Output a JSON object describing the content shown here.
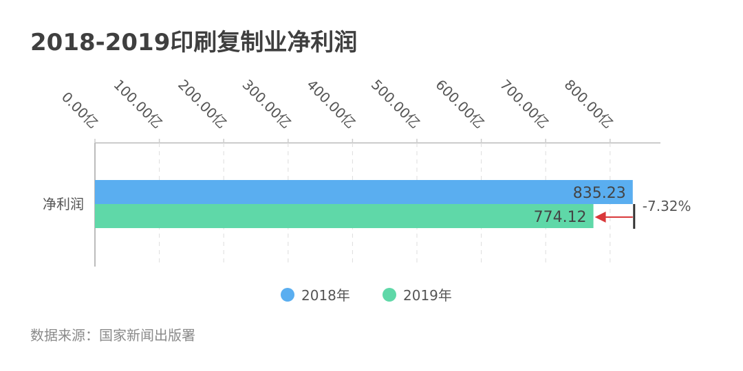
{
  "title": "2018-2019印刷复制业净利润",
  "source": "数据来源：国家新闻出版署",
  "chart_data": {
    "type": "bar",
    "orientation": "horizontal",
    "categories": [
      "净利润"
    ],
    "series": [
      {
        "name": "2018年",
        "values": [
          835.23
        ],
        "labels": [
          "835.23"
        ],
        "color": "#5aaef0"
      },
      {
        "name": "2019年",
        "values": [
          774.12
        ],
        "labels": [
          "774.12"
        ],
        "color": "#5fd8a8"
      }
    ],
    "xlim": [
      0,
      800
    ],
    "ticks": [
      0,
      100,
      200,
      300,
      400,
      500,
      600,
      700,
      800
    ],
    "tick_labels": [
      "0.00亿",
      "100.00亿",
      "200.00亿",
      "300.00亿",
      "400.00亿",
      "500.00亿",
      "600.00亿",
      "700.00亿",
      "800.00亿"
    ],
    "change_label": "-7.32%",
    "change_color": "#d9383a",
    "legend_position": "bottom",
    "grid": true
  }
}
